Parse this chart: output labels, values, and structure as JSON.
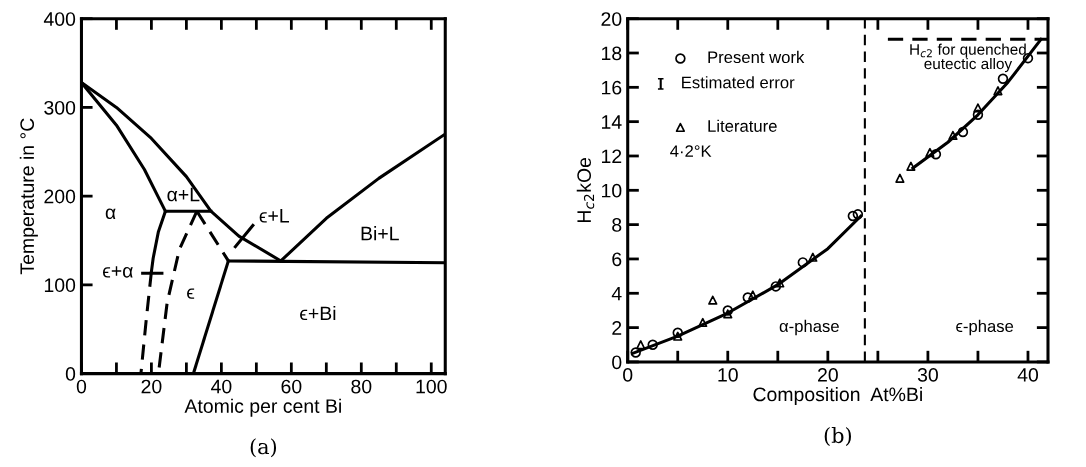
{
  "chart_data": [
    {
      "type": "line",
      "title": "(a)",
      "xlabel": "Atomic per cent Bi",
      "ylabel": "Temperature in °C",
      "xlim": [
        0,
        104
      ],
      "ylim": [
        0,
        400
      ],
      "xticks": [
        0,
        {
          "value": 10,
          "label": null
        },
        20,
        {
          "value": 30,
          "label": null
        },
        40,
        {
          "value": 50,
          "label": null
        },
        60,
        {
          "value": 70,
          "label": null
        },
        80,
        {
          "value": 90,
          "label": null
        },
        100
      ],
      "yticks": [
        0,
        100,
        200,
        300,
        400
      ],
      "grid": false,
      "legend": false,
      "marker": "none",
      "series": [
        {
          "color": "#000000",
          "line_style": "solid",
          "x": [
            0,
            10,
            20,
            30,
            37,
            45,
            57
          ],
          "values": [
            328,
            300,
            265,
            222,
            183,
            155,
            127
          ]
        },
        {
          "color": "#000000",
          "line_style": "solid",
          "x": [
            0,
            10,
            18,
            24
          ],
          "values": [
            328,
            280,
            230,
            183
          ]
        },
        {
          "color": "#000000",
          "line_style": "solid",
          "x": [
            24,
            37
          ],
          "values": [
            183,
            183
          ]
        },
        {
          "color": "#000000",
          "line_style": "solid",
          "x": [
            24,
            22,
            20.5,
            20
          ],
          "values": [
            183,
            160,
            130,
            115
          ]
        },
        {
          "color": "#000000",
          "line_style": "dashed",
          "x": [
            20,
            18.5,
            17
          ],
          "values": [
            115,
            60,
            0
          ]
        },
        {
          "color": "#000000",
          "line_style": "dashed",
          "x": [
            33,
            28,
            24.5,
            22
          ],
          "values": [
            183,
            140,
            80,
            0
          ]
        },
        {
          "color": "#000000",
          "line_style": "dashed",
          "x": [
            33,
            42
          ],
          "values": [
            183,
            127
          ]
        },
        {
          "color": "#000000",
          "line_style": "solid",
          "x": [
            42,
            32
          ],
          "values": [
            127,
            0
          ]
        },
        {
          "color": "#000000",
          "line_style": "solid",
          "x": [
            42,
            104
          ],
          "values": [
            127,
            125
          ]
        },
        {
          "color": "#000000",
          "line_style": "solid",
          "x": [
            57,
            70,
            85,
            104
          ],
          "values": [
            127,
            175,
            220,
            270
          ]
        },
        {
          "color": "#000000",
          "line_style": "solid",
          "x": [
            17.5,
            23
          ],
          "values": [
            113,
            113
          ]
        },
        {
          "color": "#000000",
          "line_style": "solid",
          "x": [
            44,
            49
          ],
          "values": [
            143,
            167
          ]
        }
      ],
      "annotations": [
        "α",
        "α+L",
        "ϵ+L",
        "Bi+L",
        "ϵ+α",
        "ϵ",
        "ϵ+Bi"
      ]
    },
    {
      "type": "scatter",
      "title": "(b)",
      "xlabel": "Composition  At%Bi",
      "ylabel": "H$_{c2}$kOe",
      "xlim": [
        0,
        42
      ],
      "ylim": [
        0,
        20
      ],
      "xticks": [
        0,
        {
          "value": 5,
          "label": null
        },
        10,
        {
          "value": 15,
          "label": null
        },
        20,
        {
          "value": 25,
          "label": null
        },
        30,
        {
          "value": 35,
          "label": null
        },
        40
      ],
      "yticks": [
        0,
        2,
        4,
        6,
        8,
        10,
        12,
        14,
        16,
        18,
        20
      ],
      "grid": false,
      "legend": "top left",
      "series": [
        {
          "name": "Present work",
          "type": "scatter",
          "marker": "circle",
          "color": "#000000",
          "x": [
            0.8,
            2.5,
            5,
            10,
            12,
            14.8,
            17.5,
            22.5,
            23,
            30.8,
            33.5,
            35,
            37.5,
            40
          ],
          "values": [
            0.55,
            1.0,
            1.7,
            3.0,
            3.75,
            4.4,
            5.8,
            8.5,
            8.6,
            12.1,
            13.4,
            14.4,
            16.5,
            17.7
          ]
        },
        {
          "name": "Literature",
          "type": "scatter",
          "marker": "triangle",
          "color": "#000000",
          "x": [
            1.3,
            5,
            7.5,
            8.5,
            10,
            12.5,
            15.2,
            18.5,
            27.2,
            28.3,
            30.2,
            32.5,
            35,
            37
          ],
          "values": [
            1.0,
            1.5,
            2.3,
            3.6,
            2.8,
            3.9,
            4.6,
            6.1,
            10.7,
            11.4,
            12.2,
            13.2,
            14.8,
            15.8
          ]
        },
        {
          "type": "line",
          "marker": "none",
          "line_style": "solid",
          "color": "#000000",
          "x": [
            0.5,
            5,
            10,
            15,
            20,
            23.3
          ],
          "values": [
            0.5,
            1.5,
            2.85,
            4.5,
            6.6,
            8.5
          ]
        },
        {
          "type": "line",
          "marker": "none",
          "line_style": "solid",
          "color": "#000000",
          "x": [
            28.5,
            32,
            35,
            38,
            41.3
          ],
          "values": [
            11.3,
            12.8,
            14.4,
            16.3,
            18.8
          ]
        },
        {
          "type": "line",
          "marker": "none",
          "line_style": "dashed",
          "color": "#000000",
          "x": [
            26,
            42
          ],
          "values": [
            18.8,
            18.8
          ]
        }
      ],
      "ref_lines": [
        {
          "axis": "x",
          "value": 23.7,
          "color": "#000000",
          "line_style": "dashed"
        }
      ],
      "annotations": [
        "Estimated error",
        "4·2°K",
        {
          "text": "H$_{c2}$ for quenched\neutectic alloy",
          "x": 34,
          "y": 18.8
        },
        "α-phase",
        "ϵ-phase"
      ]
    }
  ]
}
